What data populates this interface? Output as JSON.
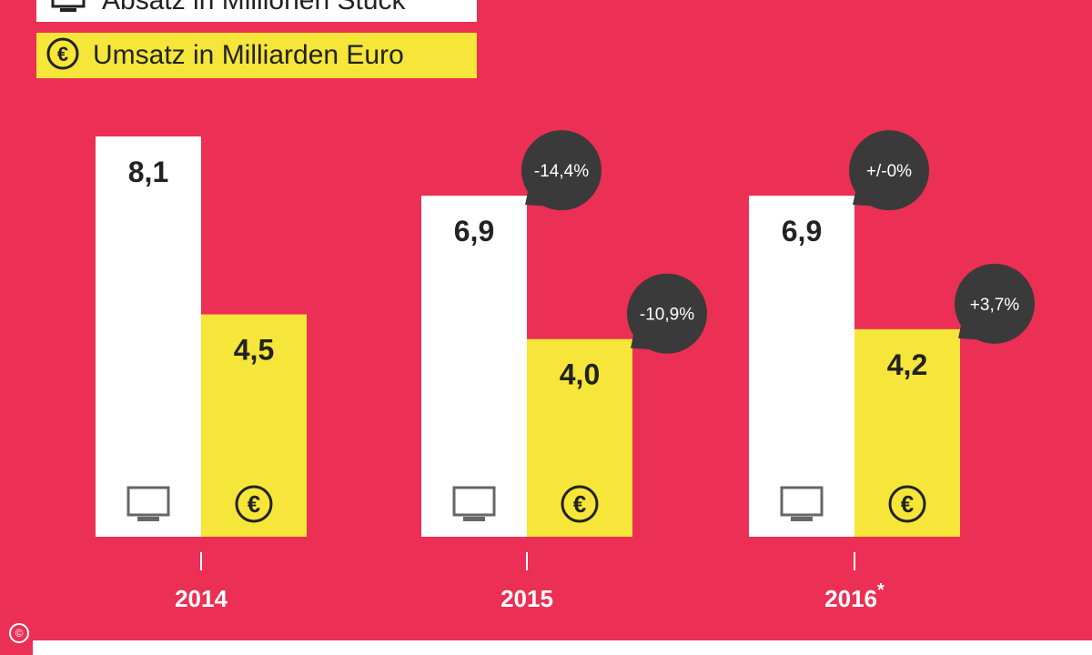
{
  "legend": {
    "units_label": "Absatz in Millionen Stück",
    "revenue_label": "Umsatz in Milliarden Euro"
  },
  "copyright_symbol": "©",
  "colors": {
    "background": "#ec2f54",
    "units_bar": "#ffffff",
    "revenue_bar": "#f5e639",
    "bubble": "#3a3a3a",
    "year_label": "#ffffff",
    "value_label": "#222222"
  },
  "chart_data": {
    "type": "bar",
    "categories": [
      "2014",
      "2015",
      "2016"
    ],
    "category_suffix": [
      "",
      "",
      "*"
    ],
    "series": [
      {
        "name": "Absatz in Millionen Stück",
        "values": [
          8.1,
          6.9,
          6.9
        ],
        "labels": [
          "8,1",
          "6,9",
          "6,9"
        ],
        "changes": [
          "",
          "-14,4%",
          "+/-0%"
        ],
        "icon": "tv-icon"
      },
      {
        "name": "Umsatz in Milliarden Euro",
        "values": [
          4.5,
          4.0,
          4.2
        ],
        "labels": [
          "4,5",
          "4,0",
          "4,2"
        ],
        "changes": [
          "",
          "-10,9%",
          "+3,7%"
        ],
        "icon": "euro-icon"
      }
    ],
    "ylim": [
      0,
      8.1
    ],
    "grid": false,
    "legend_position": "top-left"
  }
}
